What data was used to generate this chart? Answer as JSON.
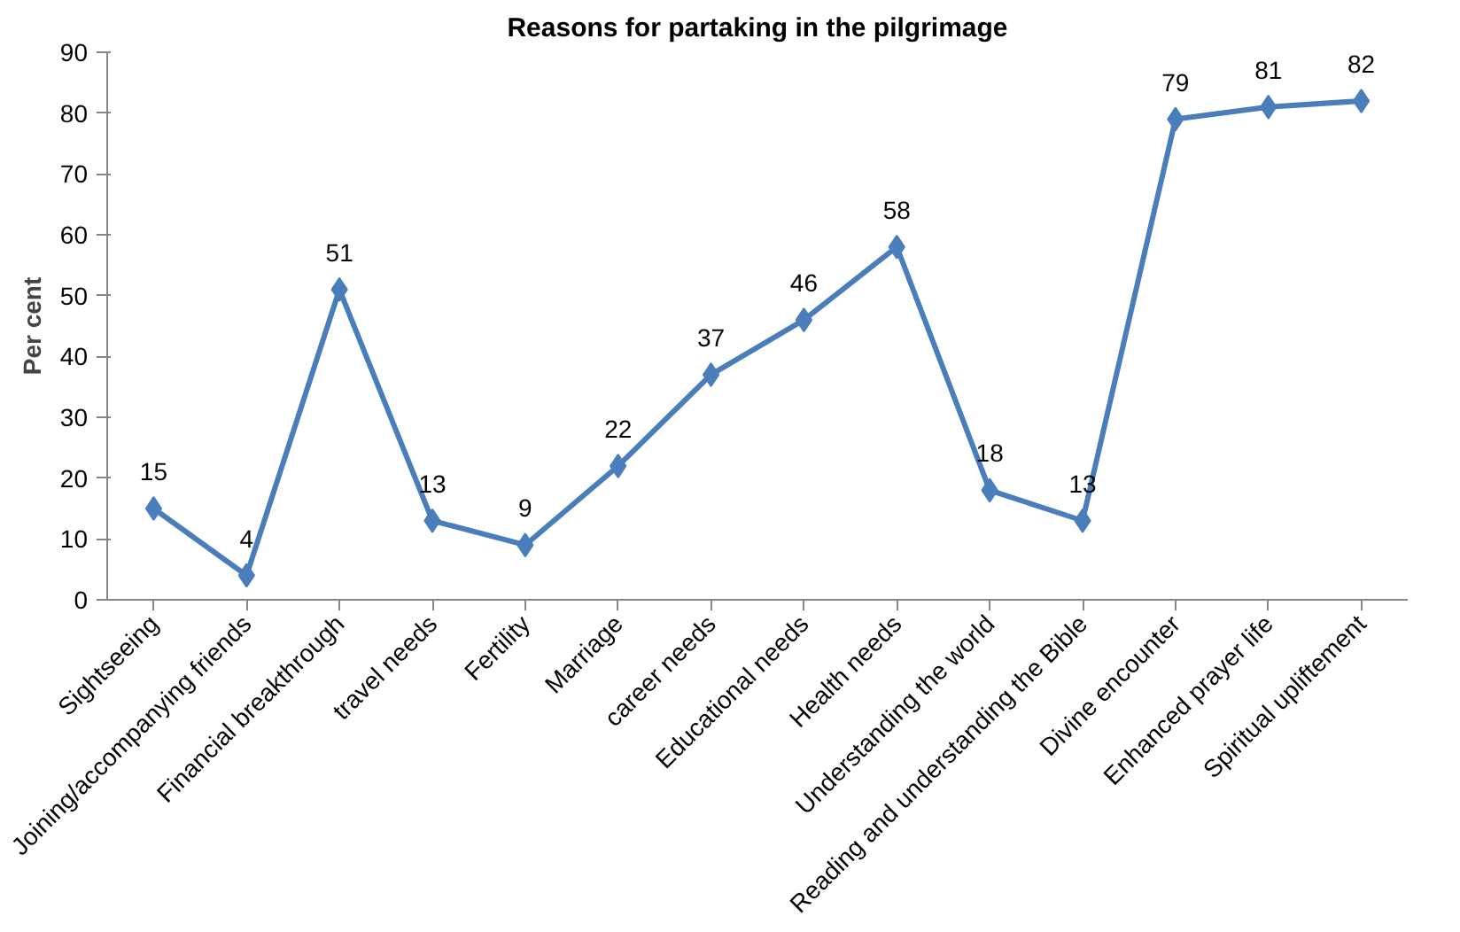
{
  "chart_data": {
    "type": "line",
    "title": "Reasons for partaking in the pilgrimage",
    "ylabel": "Per cent",
    "categories": [
      "Sightseeing",
      "Joining/accompanying friends",
      "Financial breakthrough",
      "travel needs",
      "Fertility",
      "Marriage",
      "career needs",
      "Educational needs",
      "Health needs",
      "Understanding the world",
      "Reading and understanding the Bible",
      "Divine encounter",
      "Enhanced prayer life",
      "Spiritual upliftement"
    ],
    "series": [
      {
        "color": "#4a7ebb",
        "values": [
          15,
          4,
          51,
          13,
          9,
          22,
          37,
          46,
          58,
          18,
          13,
          79,
          81,
          82
        ]
      }
    ],
    "ylim": [
      0,
      90
    ],
    "yticks": [
      0,
      10,
      20,
      30,
      40,
      50,
      60,
      70,
      80,
      90
    ],
    "data_labels": true,
    "marker": "diamond",
    "line_style": "solid"
  }
}
